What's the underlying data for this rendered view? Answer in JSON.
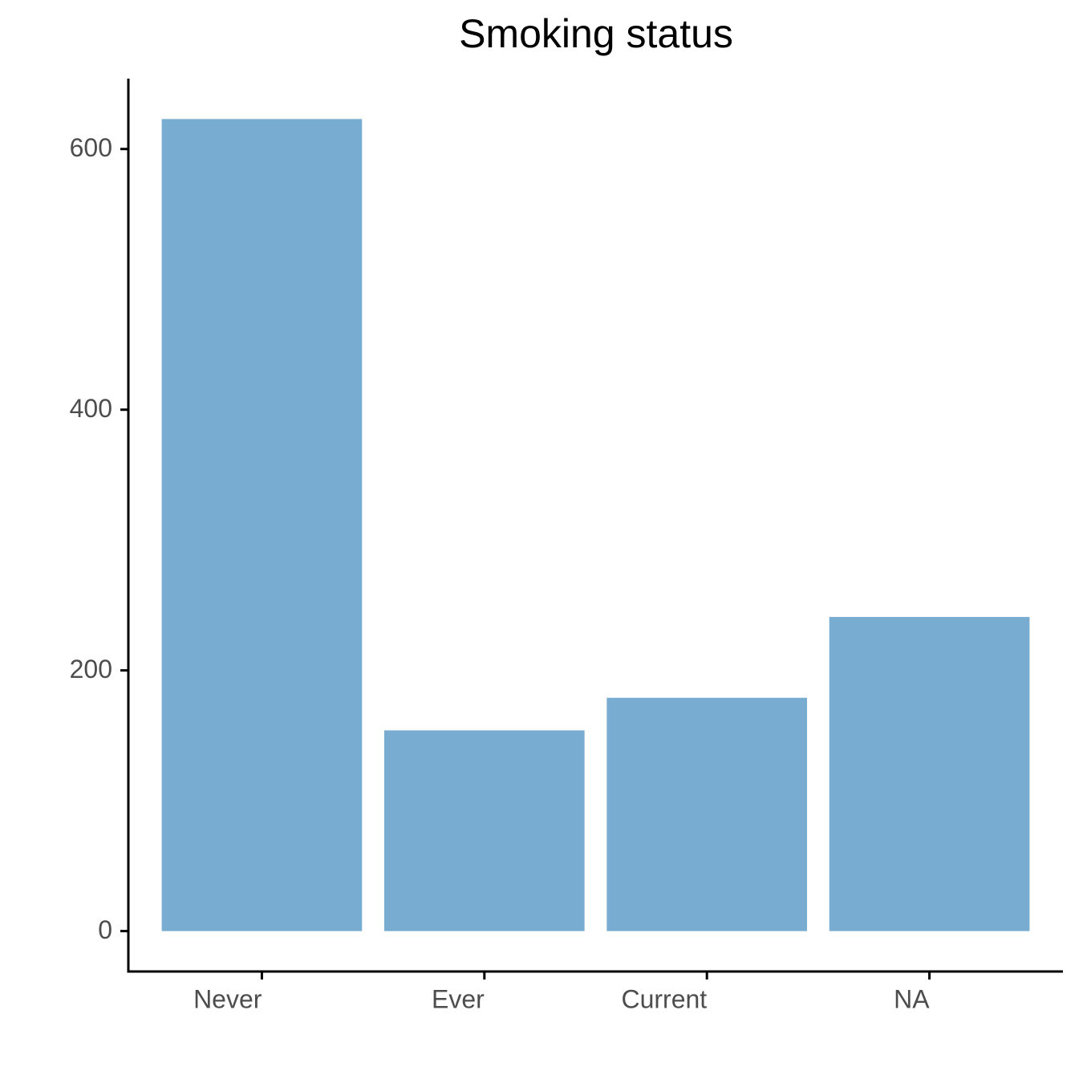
{
  "chart_data": {
    "type": "bar",
    "title": "Smoking status",
    "categories": [
      "Never",
      "Ever",
      "Current",
      "NA"
    ],
    "values": [
      623,
      154,
      179,
      241
    ],
    "color": "#79acd1",
    "ylim": [
      -31,
      654
    ],
    "yticks": [
      0,
      200,
      400,
      600
    ],
    "grid": false
  }
}
